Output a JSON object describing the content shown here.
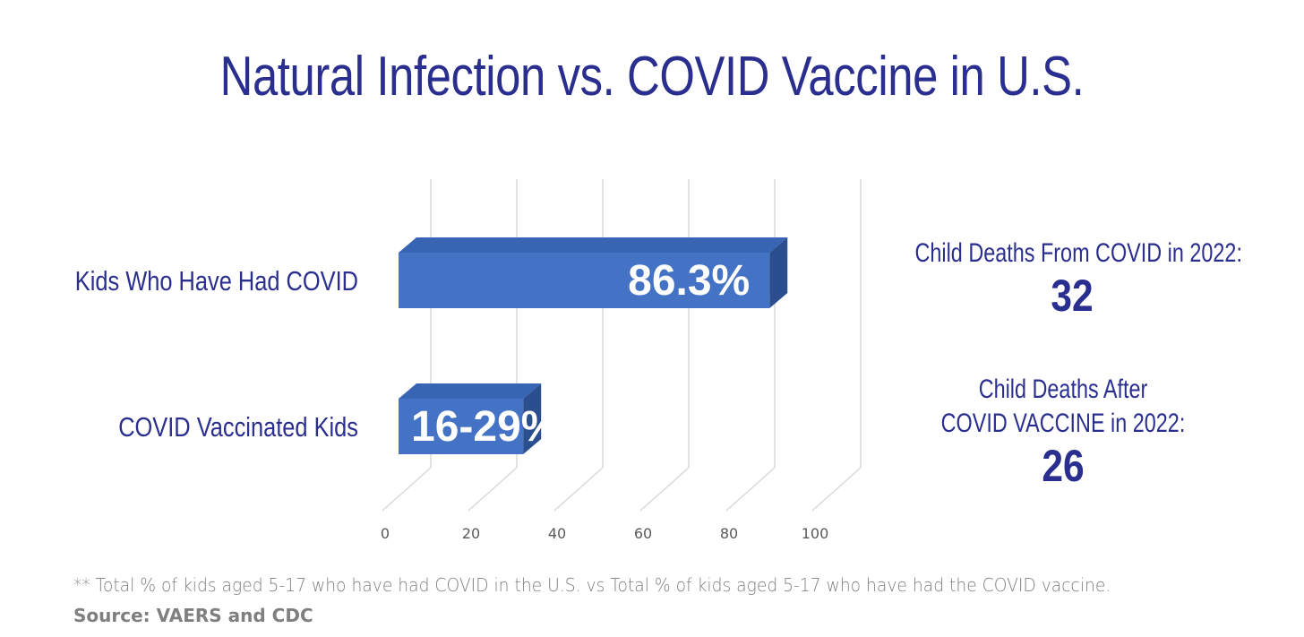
{
  "title": "Natural Infection vs. COVID Vaccine in U.S.",
  "chart_data": {
    "type": "bar",
    "orientation": "horizontal",
    "style": "3d",
    "categories": [
      "Kids Who Have Had COVID",
      "COVID Vaccinated Kids"
    ],
    "values": [
      86.3,
      29
    ],
    "data_labels": [
      "86.3%",
      "16-29%"
    ],
    "xlim": [
      0,
      100
    ],
    "xticks": [
      0,
      20,
      40,
      60,
      80,
      100
    ],
    "grid": true,
    "bar_color": "#4472c4"
  },
  "stats": [
    {
      "label_lines": [
        "Child Deaths From COVID in 2022:"
      ],
      "value": "32"
    },
    {
      "label_lines": [
        "Child Deaths After",
        "COVID VACCINE in 2022:"
      ],
      "value": "26"
    }
  ],
  "footnote": "** Total % of kids aged 5-17 who have had COVID in the U.S. vs Total % of kids aged 5-17 who have had the COVID vaccine.",
  "source": "Source: VAERS and CDC",
  "colors": {
    "title": "#2a2f8f",
    "bar": "#4472c4",
    "bar_top": "#3864b4",
    "bar_side": "#2b4f8e",
    "grid": "#d9d9d9",
    "note": "#7f7f7f"
  }
}
